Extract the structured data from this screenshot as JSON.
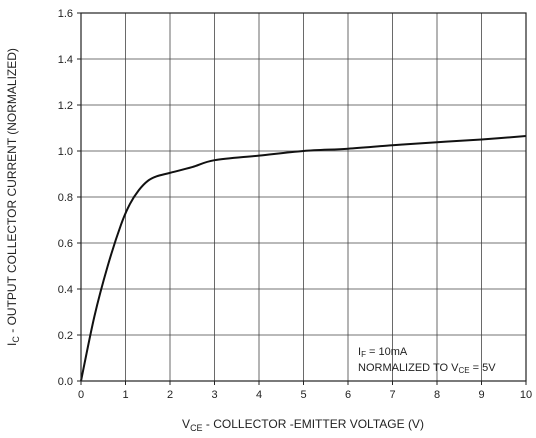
{
  "chart_data": {
    "type": "line",
    "title": "",
    "xlabel": {
      "prefix": "V",
      "sub": "CE",
      "rest": " - COLLECTOR -EMITTER VOLTAGE (V)"
    },
    "ylabel": {
      "prefix": "I",
      "sub": "C",
      "rest": " - OUTPUT COLLECTOR CURRENT (NORMALIZED)"
    },
    "xlim": [
      0,
      10
    ],
    "ylim": [
      0,
      1.6
    ],
    "xticks": [
      0,
      1,
      2,
      3,
      4,
      5,
      6,
      7,
      8,
      9,
      10
    ],
    "yticks": [
      0.0,
      0.2,
      0.4,
      0.6,
      0.8,
      1.0,
      1.2,
      1.4,
      1.6
    ],
    "xtick_labels": [
      "0",
      "1",
      "2",
      "3",
      "4",
      "5",
      "6",
      "7",
      "8",
      "9",
      "10"
    ],
    "ytick_labels": [
      "0.0",
      "0.2",
      "0.4",
      "0.6",
      "0.8",
      "1.0",
      "1.2",
      "1.4",
      "1.6"
    ],
    "grid": true,
    "series": [
      {
        "x": [
          0,
          0.3,
          0.6,
          0.9,
          1.1,
          1.3,
          1.5,
          1.7,
          2.0,
          2.5,
          3.0,
          4.0,
          5.0,
          6.0,
          7.0,
          8.0,
          9.0,
          10.0
        ],
        "y": [
          0.0,
          0.28,
          0.5,
          0.68,
          0.77,
          0.83,
          0.87,
          0.89,
          0.905,
          0.93,
          0.96,
          0.98,
          1.0,
          1.01,
          1.025,
          1.038,
          1.05,
          1.065
        ]
      }
    ],
    "annotations": {
      "line1": {
        "prefix": "I",
        "sub": "F",
        "rest": " = 10mA"
      },
      "line2": {
        "prefix": "NORMALIZED TO V",
        "sub": "CE",
        "rest": " = 5V"
      }
    },
    "colors": {
      "curve": "#111111",
      "grid": "#444444",
      "frame": "#222222"
    }
  }
}
